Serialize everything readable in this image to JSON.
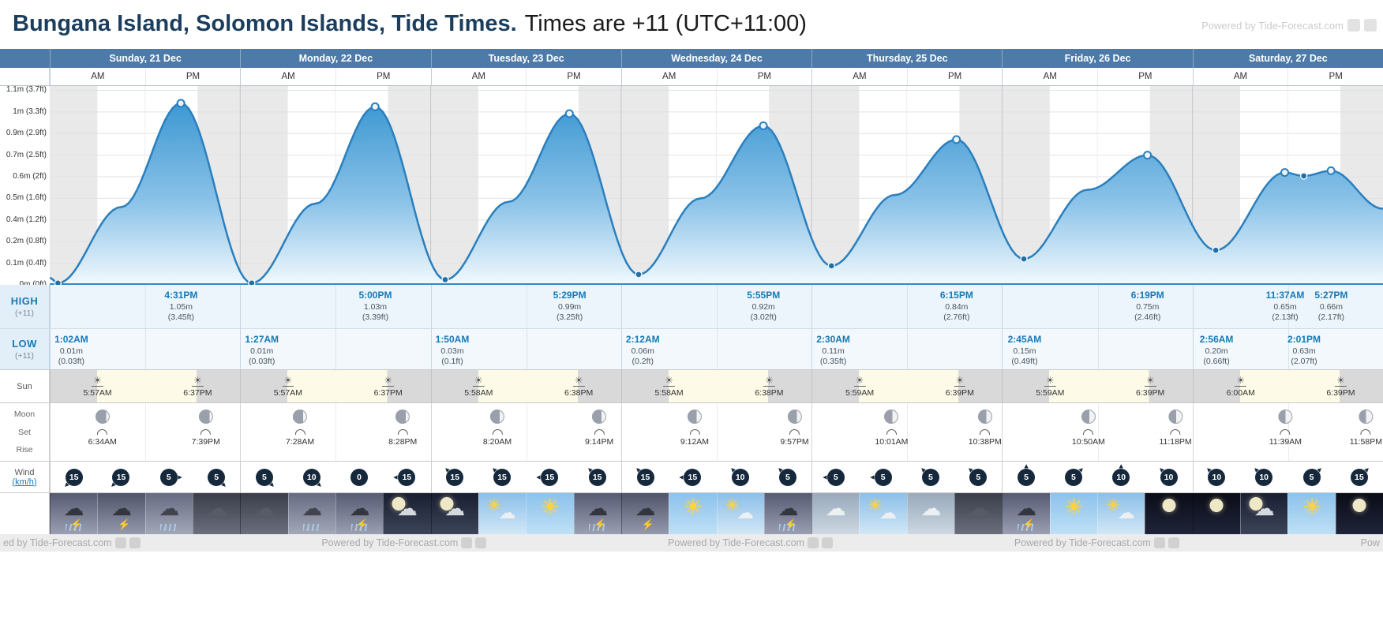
{
  "page": {
    "title": "Bungana Island, Solomon Islands, Tide Times.",
    "subtitle": "Times are +11 (UTC+11:00)",
    "watermark": "Powered by Tide-Forecast.com",
    "watermark_items": [
      "ed by Tide-Forecast.com",
      "Powered by Tide-Forecast.com",
      "Powered by Tide-Forecast.com",
      "Powered by Tide-Forecast.com",
      "Pow"
    ]
  },
  "columns": {
    "am": "AM",
    "pm": "PM",
    "days": [
      "Sunday, 21 Dec",
      "Monday, 22 Dec",
      "Tuesday, 23 Dec",
      "Wednesday, 24 Dec",
      "Thursday, 25 Dec",
      "Friday, 26 Dec",
      "Saturday, 27 Dec"
    ]
  },
  "chart_data": {
    "type": "area",
    "title": "Tide height curve 21-27 Dec (times +11)",
    "x_unit": "hours from Sunday 00:00",
    "x_range": [
      0,
      168
    ],
    "ymax_m": 1.15,
    "grid": true,
    "y_ticks": [
      {
        "h": 1.125,
        "label": "1.1m (3.7ft)"
      },
      {
        "h": 1.0,
        "label": "1m (3.3ft)"
      },
      {
        "h": 0.875,
        "label": "0.9m (2.9ft)"
      },
      {
        "h": 0.75,
        "label": "0.7m (2.5ft)"
      },
      {
        "h": 0.625,
        "label": "0.6m (2ft)"
      },
      {
        "h": 0.5,
        "label": "0.5m (1.6ft)"
      },
      {
        "h": 0.375,
        "label": "0.4m (1.2ft)"
      },
      {
        "h": 0.25,
        "label": "0.2m (0.8ft)"
      },
      {
        "h": 0.125,
        "label": "0.1m (0.4ft)"
      },
      {
        "h": 0,
        "label": "0m (0ft)"
      }
    ],
    "sunrise_hour": 6.0,
    "sunset_hour": 18.63,
    "curve_points": [
      [
        0,
        0.04
      ],
      [
        1.03,
        0.01
      ],
      [
        9,
        0.45
      ],
      [
        16.52,
        1.05
      ],
      [
        25.45,
        0.01
      ],
      [
        33.5,
        0.47
      ],
      [
        41,
        1.03
      ],
      [
        49.83,
        0.03
      ],
      [
        57.8,
        0.48
      ],
      [
        65.48,
        0.99
      ],
      [
        74.2,
        0.06
      ],
      [
        82,
        0.5
      ],
      [
        89.92,
        0.92
      ],
      [
        98.5,
        0.11
      ],
      [
        106.5,
        0.52
      ],
      [
        114.25,
        0.84
      ],
      [
        122.75,
        0.15
      ],
      [
        130.8,
        0.55
      ],
      [
        138.32,
        0.75
      ],
      [
        146.93,
        0.2
      ],
      [
        155.62,
        0.65
      ],
      [
        158.02,
        0.63
      ],
      [
        161.45,
        0.66
      ],
      [
        168,
        0.44
      ]
    ],
    "high_markers": [
      [
        16.52,
        1.05
      ],
      [
        41,
        1.03
      ],
      [
        65.48,
        0.99
      ],
      [
        89.92,
        0.92
      ],
      [
        114.25,
        0.84
      ],
      [
        138.32,
        0.75
      ],
      [
        155.62,
        0.65
      ],
      [
        161.45,
        0.66
      ]
    ],
    "low_markers": [
      [
        1.03,
        0.01
      ],
      [
        25.45,
        0.01
      ],
      [
        49.83,
        0.03
      ],
      [
        74.2,
        0.06
      ],
      [
        98.5,
        0.11
      ],
      [
        122.75,
        0.15
      ],
      [
        146.93,
        0.2
      ],
      [
        158.02,
        0.63
      ]
    ]
  },
  "high_row": {
    "label": "HIGH",
    "tz": "(+11)",
    "events": [
      {
        "day": 0,
        "half": "pm",
        "time": "4:31PM",
        "height_m": "1.05m",
        "height_ft": "(3.45ft)"
      },
      {
        "day": 1,
        "half": "pm",
        "time": "5:00PM",
        "height_m": "1.03m",
        "height_ft": "(3.39ft)"
      },
      {
        "day": 2,
        "half": "pm",
        "time": "5:29PM",
        "height_m": "0.99m",
        "height_ft": "(3.25ft)"
      },
      {
        "day": 3,
        "half": "pm",
        "time": "5:55PM",
        "height_m": "0.92m",
        "height_ft": "(3.02ft)"
      },
      {
        "day": 4,
        "half": "pm",
        "time": "6:15PM",
        "height_m": "0.84m",
        "height_ft": "(2.76ft)"
      },
      {
        "day": 5,
        "half": "pm",
        "time": "6:19PM",
        "height_m": "0.75m",
        "height_ft": "(2.46ft)"
      },
      {
        "day": 6,
        "half": "am",
        "time": "11:37AM",
        "height_m": "0.65m",
        "height_ft": "(2.13ft)"
      },
      {
        "day": 6,
        "half": "pm",
        "time": "5:27PM",
        "height_m": "0.66m",
        "height_ft": "(2.17ft)"
      }
    ]
  },
  "low_row": {
    "label": "LOW",
    "tz": "(+11)",
    "events": [
      {
        "day": 0,
        "half": "am",
        "time": "1:02AM",
        "height_m": "0.01m",
        "height_ft": "(0.03ft)"
      },
      {
        "day": 1,
        "half": "am",
        "time": "1:27AM",
        "height_m": "0.01m",
        "height_ft": "(0.03ft)"
      },
      {
        "day": 2,
        "half": "am",
        "time": "1:50AM",
        "height_m": "0.03m",
        "height_ft": "(0.1ft)"
      },
      {
        "day": 3,
        "half": "am",
        "time": "2:12AM",
        "height_m": "0.06m",
        "height_ft": "(0.2ft)"
      },
      {
        "day": 4,
        "half": "am",
        "time": "2:30AM",
        "height_m": "0.11m",
        "height_ft": "(0.35ft)"
      },
      {
        "day": 5,
        "half": "am",
        "time": "2:45AM",
        "height_m": "0.15m",
        "height_ft": "(0.49ft)"
      },
      {
        "day": 6,
        "half": "am",
        "time": "2:56AM",
        "height_m": "0.20m",
        "height_ft": "(0.66ft)"
      },
      {
        "day": 6,
        "half": "pm",
        "time": "2:01PM",
        "height_m": "0.63m",
        "height_ft": "(2.07ft)"
      }
    ]
  },
  "sun_row": {
    "label": "Sun",
    "events": [
      {
        "day": 0,
        "rise": "5:57AM",
        "set": "6:37PM"
      },
      {
        "day": 1,
        "rise": "5:57AM",
        "set": "6:37PM"
      },
      {
        "day": 2,
        "rise": "5:58AM",
        "set": "6:38PM"
      },
      {
        "day": 3,
        "rise": "5:58AM",
        "set": "6:38PM"
      },
      {
        "day": 4,
        "rise": "5:59AM",
        "set": "6:39PM"
      },
      {
        "day": 5,
        "rise": "5:59AM",
        "set": "6:39PM"
      },
      {
        "day": 6,
        "rise": "6:00AM",
        "set": "6:39PM"
      }
    ]
  },
  "moon_row": {
    "label": "Moon",
    "sub1": "Set",
    "sub2": "Rise",
    "events": [
      {
        "day": 0,
        "set": "6:34AM",
        "rise": "7:39PM",
        "light_pct": 20
      },
      {
        "day": 1,
        "set": "7:28AM",
        "rise": "8:28PM",
        "light_pct": 25
      },
      {
        "day": 2,
        "set": "8:20AM",
        "rise": "9:14PM",
        "light_pct": 30
      },
      {
        "day": 3,
        "set": "9:12AM",
        "rise": "9:57PM",
        "light_pct": 35
      },
      {
        "day": 4,
        "set": "10:01AM",
        "rise": "10:38PM",
        "light_pct": 40
      },
      {
        "day": 5,
        "set": "10:50AM",
        "rise": "11:18PM",
        "light_pct": 45
      },
      {
        "day": 6,
        "set": "11:39AM",
        "rise": "11:58PM",
        "light_pct": 50
      }
    ]
  },
  "wind_row": {
    "label": "Wind",
    "unit_label": "(km/h)",
    "badges": [
      {
        "speed": 15,
        "dir": 135
      },
      {
        "speed": 15,
        "dir": 135
      },
      {
        "speed": 5,
        "dir": 0
      },
      {
        "speed": 5,
        "dir": 45
      },
      {
        "speed": 5,
        "dir": 45
      },
      {
        "speed": 10,
        "dir": 45
      },
      {
        "speed": 0,
        "dir": null
      },
      {
        "speed": 15,
        "dir": 180
      },
      {
        "speed": 15,
        "dir": 225
      },
      {
        "speed": 15,
        "dir": 225
      },
      {
        "speed": 15,
        "dir": 180
      },
      {
        "speed": 15,
        "dir": 225
      },
      {
        "speed": 15,
        "dir": 225
      },
      {
        "speed": 15,
        "dir": 180
      },
      {
        "speed": 10,
        "dir": 225
      },
      {
        "speed": 5,
        "dir": 225
      },
      {
        "speed": 5,
        "dir": 180
      },
      {
        "speed": 5,
        "dir": 180
      },
      {
        "speed": 5,
        "dir": 225
      },
      {
        "speed": 5,
        "dir": 225
      },
      {
        "speed": 5,
        "dir": 270
      },
      {
        "speed": 5,
        "dir": 315
      },
      {
        "speed": 10,
        "dir": 270
      },
      {
        "speed": 10,
        "dir": 225
      },
      {
        "speed": 10,
        "dir": 225
      },
      {
        "speed": 10,
        "dir": 225
      },
      {
        "speed": 5,
        "dir": 315
      },
      {
        "speed": 15,
        "dir": 315
      }
    ]
  },
  "weather_row": {
    "tiles": [
      "thunderstorm",
      "lightning",
      "rain",
      "cloud-dark",
      "cloud-dark",
      "rain",
      "thunderstorm",
      "night-cloud",
      "night-cloud",
      "sun-cloud",
      "sunny",
      "thunderstorm",
      "lightning",
      "sunny",
      "sun-cloud",
      "thunderstorm",
      "cloud",
      "sun-cloud",
      "cloud",
      "cloud-dark",
      "thunderstorm",
      "sunny",
      "sun-cloud",
      "night-clear",
      "night-clear",
      "night-cloud",
      "sunny",
      "night-clear"
    ]
  }
}
